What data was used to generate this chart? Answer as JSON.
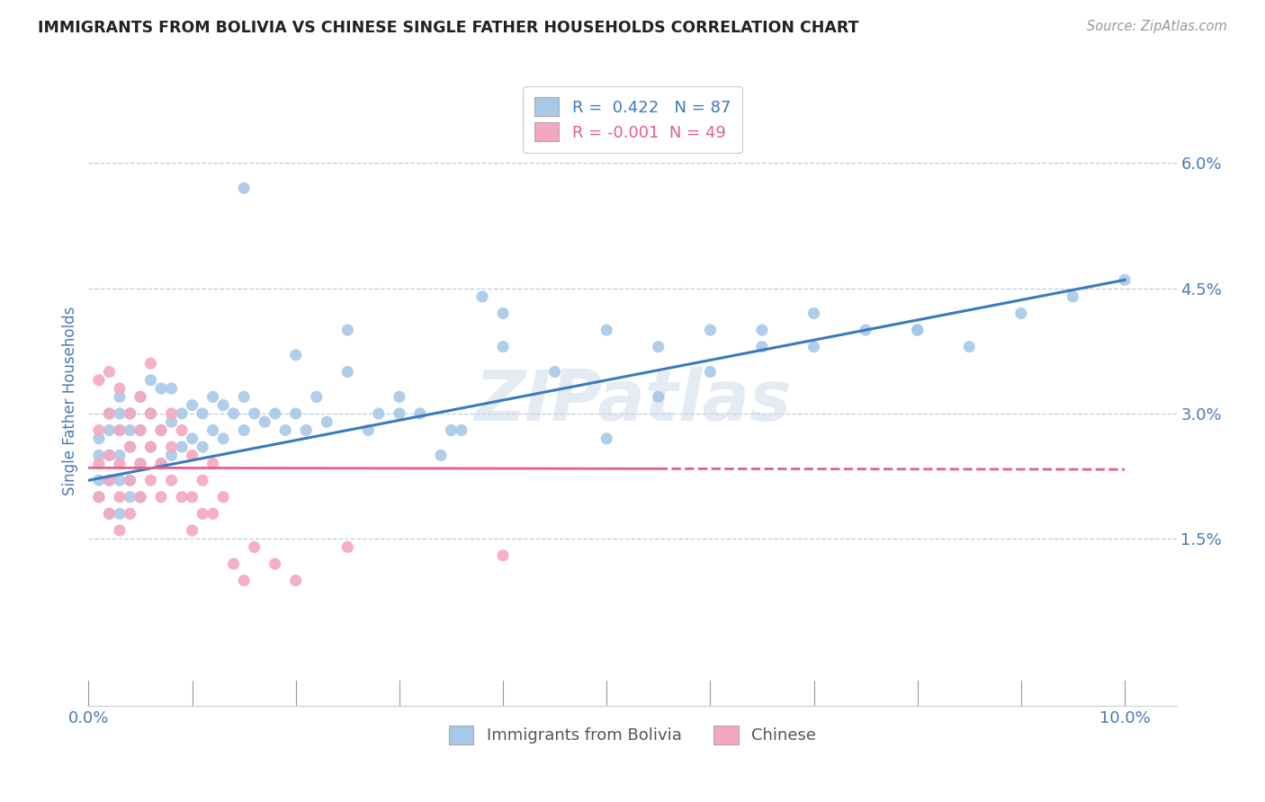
{
  "title": "IMMIGRANTS FROM BOLIVIA VS CHINESE SINGLE FATHER HOUSEHOLDS CORRELATION CHART",
  "source": "Source: ZipAtlas.com",
  "ylabel": "Single Father Households",
  "yticks": [
    "1.5%",
    "3.0%",
    "4.5%",
    "6.0%"
  ],
  "ytick_vals": [
    0.015,
    0.03,
    0.045,
    0.06
  ],
  "xtick_vals": [
    0.0,
    0.01,
    0.02,
    0.03,
    0.04,
    0.05,
    0.06,
    0.07,
    0.08,
    0.09,
    0.1
  ],
  "xlim": [
    0.0,
    0.105
  ],
  "ylim": [
    -0.005,
    0.068
  ],
  "blue_R": 0.422,
  "blue_N": 87,
  "pink_R": -0.001,
  "pink_N": 49,
  "blue_color": "#a8c8e8",
  "pink_color": "#f4a8c0",
  "blue_line_color": "#3a7abf",
  "pink_line_color": "#e06090",
  "watermark": "ZIPatlas",
  "legend_label_blue": "Immigrants from Bolivia",
  "legend_label_pink": "Chinese",
  "blue_scatter_x": [
    0.001,
    0.001,
    0.001,
    0.001,
    0.002,
    0.002,
    0.002,
    0.002,
    0.002,
    0.003,
    0.003,
    0.003,
    0.003,
    0.003,
    0.003,
    0.004,
    0.004,
    0.004,
    0.004,
    0.004,
    0.005,
    0.005,
    0.005,
    0.005,
    0.006,
    0.006,
    0.006,
    0.007,
    0.007,
    0.007,
    0.008,
    0.008,
    0.008,
    0.009,
    0.009,
    0.01,
    0.01,
    0.011,
    0.011,
    0.012,
    0.012,
    0.013,
    0.013,
    0.014,
    0.015,
    0.015,
    0.016,
    0.017,
    0.018,
    0.019,
    0.02,
    0.021,
    0.022,
    0.023,
    0.025,
    0.027,
    0.028,
    0.03,
    0.032,
    0.034,
    0.036,
    0.038,
    0.04,
    0.015,
    0.02,
    0.025,
    0.05,
    0.055,
    0.06,
    0.065,
    0.07,
    0.075,
    0.08,
    0.085,
    0.09,
    0.095,
    0.1,
    0.03,
    0.035,
    0.04,
    0.045,
    0.05,
    0.055,
    0.06,
    0.065,
    0.07,
    0.08
  ],
  "blue_scatter_y": [
    0.025,
    0.027,
    0.022,
    0.02,
    0.028,
    0.025,
    0.022,
    0.03,
    0.018,
    0.032,
    0.028,
    0.025,
    0.022,
    0.03,
    0.018,
    0.03,
    0.026,
    0.022,
    0.028,
    0.02,
    0.032,
    0.028,
    0.024,
    0.02,
    0.034,
    0.03,
    0.026,
    0.033,
    0.028,
    0.024,
    0.033,
    0.029,
    0.025,
    0.03,
    0.026,
    0.031,
    0.027,
    0.03,
    0.026,
    0.032,
    0.028,
    0.031,
    0.027,
    0.03,
    0.032,
    0.028,
    0.03,
    0.029,
    0.03,
    0.028,
    0.03,
    0.028,
    0.032,
    0.029,
    0.035,
    0.028,
    0.03,
    0.032,
    0.03,
    0.025,
    0.028,
    0.044,
    0.042,
    0.057,
    0.037,
    0.04,
    0.027,
    0.038,
    0.035,
    0.04,
    0.038,
    0.04,
    0.04,
    0.038,
    0.042,
    0.044,
    0.046,
    0.03,
    0.028,
    0.038,
    0.035,
    0.04,
    0.032,
    0.04,
    0.038,
    0.042,
    0.04
  ],
  "pink_scatter_x": [
    0.001,
    0.001,
    0.001,
    0.001,
    0.002,
    0.002,
    0.002,
    0.002,
    0.002,
    0.003,
    0.003,
    0.003,
    0.003,
    0.003,
    0.004,
    0.004,
    0.004,
    0.004,
    0.005,
    0.005,
    0.005,
    0.005,
    0.006,
    0.006,
    0.006,
    0.006,
    0.007,
    0.007,
    0.007,
    0.008,
    0.008,
    0.008,
    0.009,
    0.009,
    0.01,
    0.01,
    0.01,
    0.011,
    0.011,
    0.012,
    0.012,
    0.013,
    0.014,
    0.015,
    0.016,
    0.018,
    0.02,
    0.025,
    0.04
  ],
  "pink_scatter_y": [
    0.034,
    0.028,
    0.024,
    0.02,
    0.035,
    0.03,
    0.025,
    0.022,
    0.018,
    0.033,
    0.028,
    0.024,
    0.02,
    0.016,
    0.03,
    0.026,
    0.022,
    0.018,
    0.032,
    0.028,
    0.024,
    0.02,
    0.036,
    0.03,
    0.026,
    0.022,
    0.028,
    0.024,
    0.02,
    0.03,
    0.026,
    0.022,
    0.028,
    0.02,
    0.025,
    0.02,
    0.016,
    0.022,
    0.018,
    0.024,
    0.018,
    0.02,
    0.012,
    0.01,
    0.014,
    0.012,
    0.01,
    0.014,
    0.013
  ],
  "background_color": "#ffffff",
  "grid_color": "#b8cfe0",
  "title_color": "#222222",
  "axis_label_color": "#4a7ab5",
  "tick_label_color": "#4a7ab5"
}
